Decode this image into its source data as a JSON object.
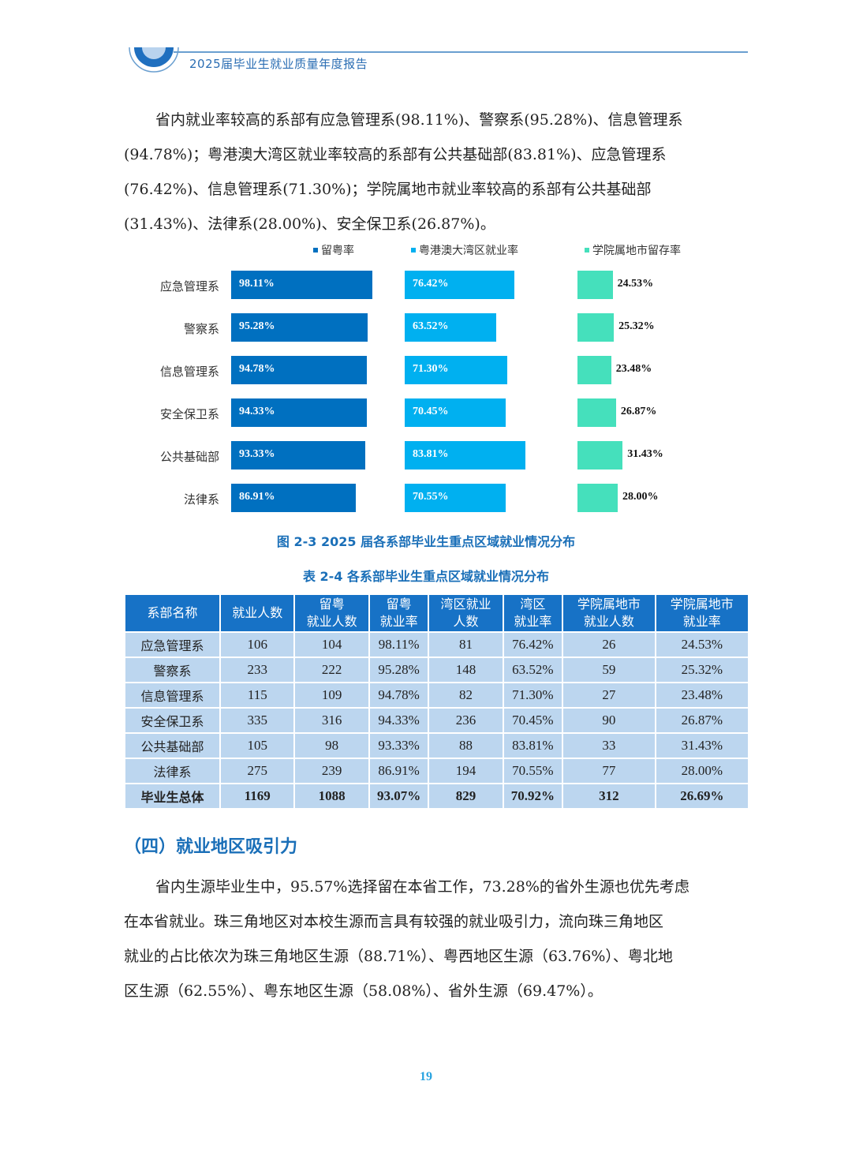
{
  "header": {
    "title": "2025届毕业生就业质量年度报告",
    "logo_icon": "semicircle-logo-icon"
  },
  "intro_paragraph": {
    "lines": [
      "省内就业率较高的系部有应急管理系(98.11%)、警察系(95.28%)、信息管理系",
      "(94.78%)；粤港澳大湾区就业率较高的系部有公共基础部(83.81%)、应急管理系",
      "(76.42%)、信息管理系(71.30%)；学院属地市就业率较高的系部有公共基础部",
      "(31.43%)、法律系(28.00%)、安全保卫系(26.87%)。"
    ]
  },
  "chart_data": {
    "type": "bar",
    "orientation": "horizontal",
    "title": "图 2-3  2025 届各系部毕业生重点区域就业情况分布",
    "categories": [
      "应急管理系",
      "警察系",
      "信息管理系",
      "安全保卫系",
      "公共基础部",
      "法律系"
    ],
    "series": [
      {
        "name": "留粤率",
        "color": "#0070c0",
        "values": [
          98.11,
          95.28,
          94.78,
          94.33,
          93.33,
          86.91
        ]
      },
      {
        "name": "粤港澳大湾区就业率",
        "color": "#00b0f0",
        "values": [
          76.42,
          63.52,
          71.3,
          70.45,
          83.81,
          70.55
        ]
      },
      {
        "name": "学院属地市留存率",
        "color": "#45e0bc",
        "values": [
          24.53,
          25.32,
          23.48,
          26.87,
          31.43,
          28.0
        ]
      }
    ],
    "value_labels": [
      [
        "98.11%",
        "95.28%",
        "94.78%",
        "94.33%",
        "93.33%",
        "86.91%"
      ],
      [
        "76.42%",
        "63.52%",
        "71.30%",
        "70.45%",
        "83.81%",
        "70.55%"
      ],
      [
        "24.53%",
        "25.32%",
        "23.48%",
        "26.87%",
        "31.43%",
        "28.00%"
      ]
    ],
    "legend_position": "top",
    "grid": false,
    "xlabel": "",
    "ylabel": ""
  },
  "figure_caption": "图 2-3  2025 届各系部毕业生重点区域就业情况分布",
  "table_caption": "表 2-4    各系部毕业生重点区域就业情况分布",
  "table": {
    "headers": [
      [
        "系部名称"
      ],
      [
        "就业人数"
      ],
      [
        "留粤",
        "就业人数"
      ],
      [
        "留粤",
        "就业率"
      ],
      [
        "湾区就业",
        "人数"
      ],
      [
        "湾区",
        "就业率"
      ],
      [
        "学院属地市",
        "就业人数"
      ],
      [
        "学院属地市",
        "就业率"
      ]
    ],
    "rows": [
      [
        "应急管理系",
        "106",
        "104",
        "98.11%",
        "81",
        "76.42%",
        "26",
        "24.53%"
      ],
      [
        "警察系",
        "233",
        "222",
        "95.28%",
        "148",
        "63.52%",
        "59",
        "25.32%"
      ],
      [
        "信息管理系",
        "115",
        "109",
        "94.78%",
        "82",
        "71.30%",
        "27",
        "23.48%"
      ],
      [
        "安全保卫系",
        "335",
        "316",
        "94.33%",
        "236",
        "70.45%",
        "90",
        "26.87%"
      ],
      [
        "公共基础部",
        "105",
        "98",
        "93.33%",
        "88",
        "83.81%",
        "33",
        "31.43%"
      ],
      [
        "法律系",
        "275",
        "239",
        "86.91%",
        "194",
        "70.55%",
        "77",
        "28.00%"
      ]
    ],
    "total_row": [
      "毕业生总体",
      "1169",
      "1088",
      "93.07%",
      "829",
      "70.92%",
      "312",
      "26.69%"
    ],
    "colors": {
      "header_bg": "#1772c6",
      "cell_bg": "#bcd6ef"
    }
  },
  "section": {
    "title": "（四）就业地区吸引力",
    "paragraph_lines": [
      "省内生源毕业生中，95.57%选择留在本省工作，73.28%的省外生源也优先考虑",
      "在本省就业。珠三角地区对本校生源而言具有较强的就业吸引力，流向珠三角地区",
      "就业的占比依次为珠三角地区生源（88.71%）、粤西地区生源（63.76%）、粤北地",
      "区生源（62.55%）、粤东地区生源（58.08%）、省外生源（69.47%）。"
    ]
  },
  "page_number": "19",
  "colors": {
    "accent": "#1a6fb8",
    "page_number": "#29a3e0"
  }
}
